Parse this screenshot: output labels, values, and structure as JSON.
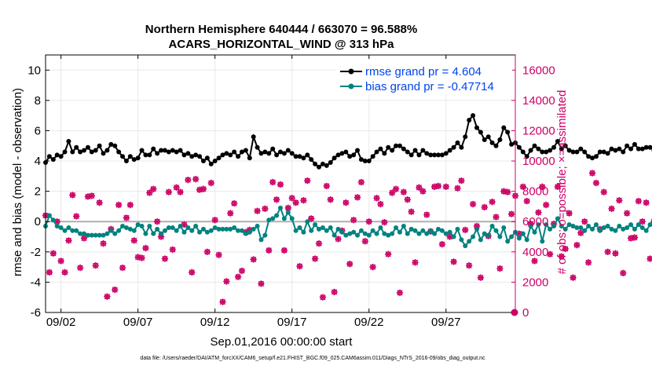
{
  "chart_data": {
    "type": "line",
    "title_line1": "Northern Hemisphere 640444 / 663070 = 96.588%",
    "title_line2": "ACARS_HORIZONTAL_WIND @ 313 hPa",
    "ylabel_left": "rmse and bias (model - observation)",
    "ylabel_right": "# of obs: o=possible; ×=assimilated",
    "xlabel": "Sep.01,2016 00:00:00 start",
    "footnote": "data file: /Users/raeder/DAI/ATM_forcXX/CAM6_setup/f.e21.FHIST_BGC.f09_025.CAM6assim.011/Diags_NTrS_2016-09/obs_diag_output.nc",
    "x_range": [
      1,
      31.5
    ],
    "ylim_left": [
      -6,
      11
    ],
    "ylim_right": [
      0,
      17000
    ],
    "left_ticks": [
      "10",
      "8",
      "6",
      "4",
      "2",
      "0",
      "-2",
      "-4",
      "-6"
    ],
    "left_tick_values": [
      10,
      8,
      6,
      4,
      2,
      0,
      -2,
      -4,
      -6
    ],
    "right_ticks": [
      "16000",
      "14000",
      "12000",
      "10000",
      "8000",
      "6000",
      "4000",
      "2000",
      "0"
    ],
    "right_tick_values": [
      16000,
      14000,
      12000,
      10000,
      8000,
      6000,
      4000,
      2000,
      0
    ],
    "x_ticks": [
      "09/02",
      "09/07",
      "09/12",
      "09/17",
      "09/22",
      "09/27"
    ],
    "x_tick_values": [
      2,
      7,
      12,
      17,
      22,
      27
    ],
    "zero_line": 0,
    "x_start": 1.0,
    "x_step": 0.25,
    "series": [
      {
        "name": "rmse grand pr = 4.604",
        "color": "#000000",
        "values": [
          3.9,
          4.3,
          4.1,
          4.4,
          4.3,
          4.6,
          5.3,
          4.6,
          4.9,
          4.6,
          4.7,
          4.9,
          4.6,
          4.7,
          5.0,
          4.5,
          4.7,
          5.1,
          5.0,
          4.6,
          4.3,
          4.0,
          4.3,
          4.1,
          4.2,
          4.7,
          4.4,
          4.4,
          4.8,
          4.5,
          4.7,
          4.7,
          4.6,
          4.7,
          4.6,
          4.7,
          4.4,
          4.5,
          4.3,
          4.4,
          4.3,
          4.0,
          4.2,
          3.8,
          4.0,
          4.2,
          4.4,
          4.5,
          4.4,
          4.6,
          4.3,
          4.6,
          4.7,
          4.2,
          5.6,
          4.9,
          4.5,
          4.6,
          4.5,
          4.8,
          4.4,
          4.6,
          4.5,
          4.7,
          4.5,
          4.3,
          4.3,
          4.2,
          4.4,
          4.1,
          3.8,
          3.6,
          3.8,
          3.7,
          3.9,
          4.2,
          4.4,
          4.5,
          4.6,
          4.3,
          4.4,
          4.7,
          4.1,
          4.0,
          4.0,
          4.3,
          4.6,
          4.8,
          4.5,
          4.9,
          4.7,
          5.0,
          5.0,
          4.8,
          4.6,
          4.4,
          4.7,
          4.4,
          4.7,
          4.5,
          4.4,
          4.4,
          4.4,
          4.4,
          4.5,
          4.7,
          4.9,
          5.2,
          4.9,
          5.6,
          6.7,
          7.0,
          6.2,
          5.9,
          5.4,
          5.6,
          5.2,
          5.0,
          5.4,
          6.2,
          5.9,
          5.1,
          5.2,
          4.9,
          4.6,
          4.3,
          4.7,
          5.0,
          4.8,
          4.6,
          4.6,
          4.7,
          4.9,
          5.3,
          4.8,
          5.0,
          4.7,
          4.6,
          4.6,
          4.8,
          4.6,
          4.3,
          4.2,
          4.3,
          4.6,
          4.6,
          4.5,
          4.8,
          4.7,
          4.8,
          4.6,
          5.0,
          4.8,
          5.1,
          4.8,
          4.8,
          4.9,
          4.9,
          4.7,
          4.2
        ]
      },
      {
        "name": "bias grand pr = -0.47714",
        "color": "#00827f",
        "values": [
          -0.3,
          0.4,
          0.1,
          -0.3,
          -0.4,
          -0.6,
          -0.4,
          -0.6,
          -0.6,
          -0.8,
          -0.8,
          -0.9,
          -0.9,
          -0.9,
          -0.9,
          -0.9,
          -0.8,
          -0.6,
          -0.8,
          -0.6,
          -0.3,
          -0.4,
          -0.5,
          -0.6,
          -0.2,
          -0.3,
          -0.8,
          -0.3,
          -0.8,
          -0.5,
          -0.8,
          -0.6,
          -0.4,
          -0.4,
          -0.6,
          -0.3,
          -0.7,
          -0.4,
          -0.6,
          -0.3,
          -0.7,
          -0.5,
          -0.7,
          -0.6,
          -0.4,
          -0.5,
          -0.5,
          -0.5,
          -0.5,
          -0.4,
          -0.6,
          -0.6,
          -0.8,
          -0.7,
          -0.5,
          -0.3,
          -1.2,
          -0.9,
          0.1,
          0.2,
          0.4,
          0.9,
          0.2,
          0.6,
          0.2,
          -0.6,
          -0.4,
          -0.7,
          0.0,
          -0.6,
          -0.2,
          -0.5,
          -0.4,
          -0.6,
          -0.4,
          -0.9,
          -0.5,
          -0.7,
          -0.9,
          -0.8,
          -0.7,
          -0.9,
          -0.6,
          -0.8,
          -0.9,
          -0.6,
          -0.8,
          -0.4,
          -0.8,
          -0.9,
          -0.8,
          -0.4,
          -0.7,
          -0.3,
          -0.8,
          -0.5,
          -0.6,
          -0.8,
          -0.6,
          -0.8,
          -0.6,
          -0.8,
          -0.5,
          -0.6,
          -0.8,
          -0.7,
          -1.0,
          -0.5,
          -1.2,
          -1.6,
          -1.3,
          -1.0,
          -0.5,
          -1.2,
          -0.8,
          -0.9,
          -0.3,
          -0.6,
          -1.0,
          -0.4,
          -1.3,
          -1.0,
          -0.7,
          -1.1,
          -0.8,
          -1.2,
          -0.3,
          -0.7,
          -0.2,
          -1.3,
          -0.2,
          -0.5,
          -0.3,
          0.2,
          -0.3,
          -0.5,
          -0.2,
          -0.3,
          -0.4,
          -0.4,
          -0.6,
          -0.3,
          -0.5,
          -0.2,
          -0.6,
          -0.4,
          -0.3,
          -0.5,
          -0.6,
          -0.3,
          -0.5,
          -0.4,
          -0.2,
          -0.5,
          -0.2,
          -0.4,
          -0.6,
          -0.2
        ]
      }
    ],
    "obs_series": {
      "possible_label": "o=possible",
      "assimilated_label": "×=assimilated",
      "color": "#cc0066",
      "possible": [
        6400,
        2650,
        3900,
        6000,
        3400,
        2650,
        4750,
        7750,
        6350,
        2950,
        4900,
        7650,
        7700,
        3100,
        7250,
        4550,
        1050,
        5500,
        1500,
        7100,
        2950,
        6250,
        7100,
        4750,
        3650,
        3600,
        4250,
        7900,
        8150,
        6000,
        5000,
        3550,
        7950,
        4150,
        8250,
        7950,
        5800,
        8750,
        2650,
        8800,
        8100,
        8150,
        4000,
        8550,
        6100,
        3800,
        700,
        2050,
        6550,
        7200,
        2350,
        2750,
        5300,
        5450,
        3500,
        6700,
        1900,
        6850,
        4100,
        8600,
        7450,
        8450,
        4100,
        6900,
        7550,
        7250,
        3050,
        7400,
        8700,
        6200,
        3550,
        4550,
        1000,
        8350,
        7450,
        1350,
        4850,
        5400,
        7250,
        3200,
        6100,
        7600,
        8600,
        4700,
        6000,
        3000,
        7550,
        7150,
        5950,
        3850,
        7900,
        8150,
        1300,
        7950,
        7450,
        6650,
        3300,
        8250,
        8000,
        6450,
        5350,
        8300,
        8350,
        4500,
        8300,
        5000,
        3350,
        8200,
        8700,
        5450,
        3100,
        7150,
        5700,
        2300,
        6950,
        5050,
        7300,
        6300,
        2900,
        8000,
        7950,
        6500,
        7700,
        5200,
        8300,
        7350,
        5850,
        3400,
        6600,
        8300,
        7100,
        3850,
        5850,
        8300,
        3700,
        4200,
        6550,
        2300,
        4450,
        5250,
        6000,
        3300,
        9200,
        8550,
        5500,
        7950,
        4000,
        6850,
        3900,
        7400,
        2600,
        6550,
        4900,
        4950,
        7350,
        6000,
        7250,
        3550,
        6000,
        5850
      ],
      "assimilated": [
        6400,
        2650,
        3900,
        6000,
        3400,
        2650,
        4750,
        7750,
        6350,
        2950,
        4900,
        7650,
        7700,
        3100,
        7250,
        4550,
        1050,
        5500,
        1500,
        7100,
        2950,
        6250,
        7100,
        4750,
        3650,
        3600,
        4250,
        7900,
        8150,
        6000,
        5000,
        3550,
        7950,
        4150,
        8250,
        7950,
        5800,
        8750,
        2650,
        8800,
        8100,
        8150,
        4000,
        8550,
        6100,
        3800,
        700,
        2050,
        6550,
        7200,
        2350,
        2750,
        5300,
        5450,
        3500,
        6700,
        1900,
        6850,
        4100,
        8600,
        7450,
        8450,
        4100,
        6900,
        7550,
        7250,
        3050,
        7400,
        8700,
        6200,
        3550,
        4550,
        1000,
        8350,
        7450,
        1350,
        4850,
        5400,
        7250,
        3200,
        6100,
        7600,
        8600,
        4700,
        6000,
        3000,
        7550,
        7150,
        5950,
        3850,
        7900,
        8150,
        1300,
        7950,
        7450,
        6650,
        3300,
        8250,
        8000,
        6450,
        5350,
        8300,
        8350,
        4500,
        8300,
        5000,
        3350,
        8200,
        8700,
        5450,
        3100,
        7150,
        5700,
        2300,
        6950,
        5050,
        7300,
        6300,
        2900,
        8000,
        7950,
        6500,
        7700,
        5200,
        8300,
        7350,
        5850,
        3400,
        6600,
        8300,
        7100,
        3850,
        5850,
        8300,
        3700,
        4200,
        6550,
        2300,
        4450,
        5250,
        6000,
        3300,
        9200,
        8550,
        5500,
        7950,
        4000,
        6850,
        3900,
        7400,
        2600,
        6550,
        4900,
        4950,
        7350,
        6000,
        7250,
        3550,
        6000,
        5850
      ],
      "last_point_value": 0
    }
  }
}
